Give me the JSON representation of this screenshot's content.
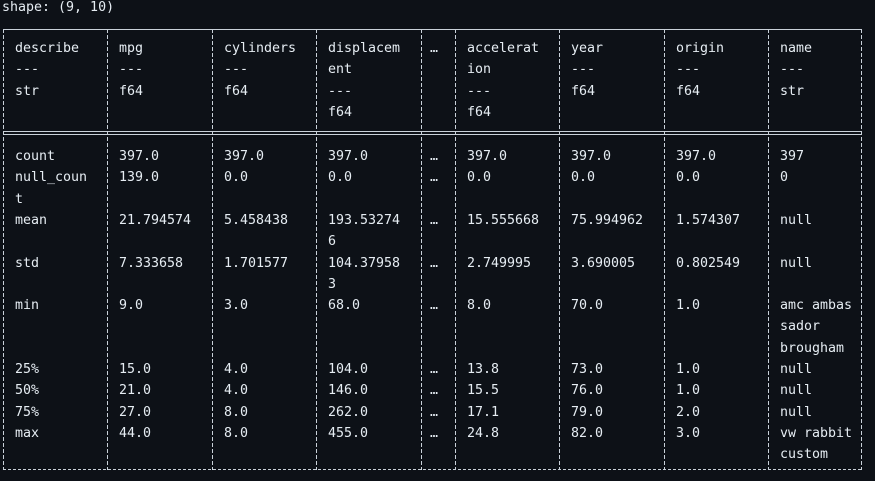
{
  "shape_label": "shape: (9, 10)",
  "columns": [
    {
      "lines": [
        "describe",
        "---",
        "str"
      ]
    },
    {
      "lines": [
        "mpg",
        "---",
        "f64"
      ]
    },
    {
      "lines": [
        "cylinders",
        "---",
        "f64"
      ]
    },
    {
      "lines": [
        "displacem",
        "ent",
        "---",
        "f64"
      ]
    },
    {
      "lines": [
        "…"
      ]
    },
    {
      "lines": [
        "accelerat",
        "ion",
        "---",
        "f64"
      ]
    },
    {
      "lines": [
        "year",
        "---",
        "f64"
      ]
    },
    {
      "lines": [
        "origin",
        "---",
        "f64"
      ]
    },
    {
      "lines": [
        "name",
        "---",
        "str"
      ]
    }
  ],
  "rows": [
    [
      [
        "count"
      ],
      [
        "397.0"
      ],
      [
        "397.0"
      ],
      [
        "397.0"
      ],
      [
        "…"
      ],
      [
        "397.0"
      ],
      [
        "397.0"
      ],
      [
        "397.0"
      ],
      [
        "397"
      ]
    ],
    [
      [
        "null_coun",
        "t"
      ],
      [
        "139.0"
      ],
      [
        "0.0"
      ],
      [
        "0.0"
      ],
      [
        "…"
      ],
      [
        "0.0"
      ],
      [
        "0.0"
      ],
      [
        "0.0"
      ],
      [
        "0"
      ]
    ],
    [
      [
        "mean"
      ],
      [
        "21.794574"
      ],
      [
        "5.458438"
      ],
      [
        "193.53274",
        "6"
      ],
      [
        "…"
      ],
      [
        "15.555668"
      ],
      [
        "75.994962"
      ],
      [
        "1.574307"
      ],
      [
        "null"
      ]
    ],
    [
      [
        "std"
      ],
      [
        "7.333658"
      ],
      [
        "1.701577"
      ],
      [
        "104.37958",
        "3"
      ],
      [
        "…"
      ],
      [
        "2.749995"
      ],
      [
        "3.690005"
      ],
      [
        "0.802549"
      ],
      [
        "null"
      ]
    ],
    [
      [
        "min"
      ],
      [
        "9.0"
      ],
      [
        "3.0"
      ],
      [
        "68.0"
      ],
      [
        "…"
      ],
      [
        "8.0"
      ],
      [
        "70.0"
      ],
      [
        "1.0"
      ],
      [
        "amc ambas",
        "sador",
        "brougham"
      ]
    ],
    [
      [
        "25%"
      ],
      [
        "15.0"
      ],
      [
        "4.0"
      ],
      [
        "104.0"
      ],
      [
        "…"
      ],
      [
        "13.8"
      ],
      [
        "73.0"
      ],
      [
        "1.0"
      ],
      [
        "null"
      ]
    ],
    [
      [
        "50%"
      ],
      [
        "21.0"
      ],
      [
        "4.0"
      ],
      [
        "146.0"
      ],
      [
        "…"
      ],
      [
        "15.5"
      ],
      [
        "76.0"
      ],
      [
        "1.0"
      ],
      [
        "null"
      ]
    ],
    [
      [
        "75%"
      ],
      [
        "27.0"
      ],
      [
        "8.0"
      ],
      [
        "262.0"
      ],
      [
        "…"
      ],
      [
        "17.1"
      ],
      [
        "79.0"
      ],
      [
        "2.0"
      ],
      [
        "null"
      ]
    ],
    [
      [
        "max"
      ],
      [
        "44.0"
      ],
      [
        "8.0"
      ],
      [
        "455.0"
      ],
      [
        "…"
      ],
      [
        "24.8"
      ],
      [
        "82.0"
      ],
      [
        "3.0"
      ],
      [
        "vw rabbit",
        "custom"
      ]
    ]
  ]
}
